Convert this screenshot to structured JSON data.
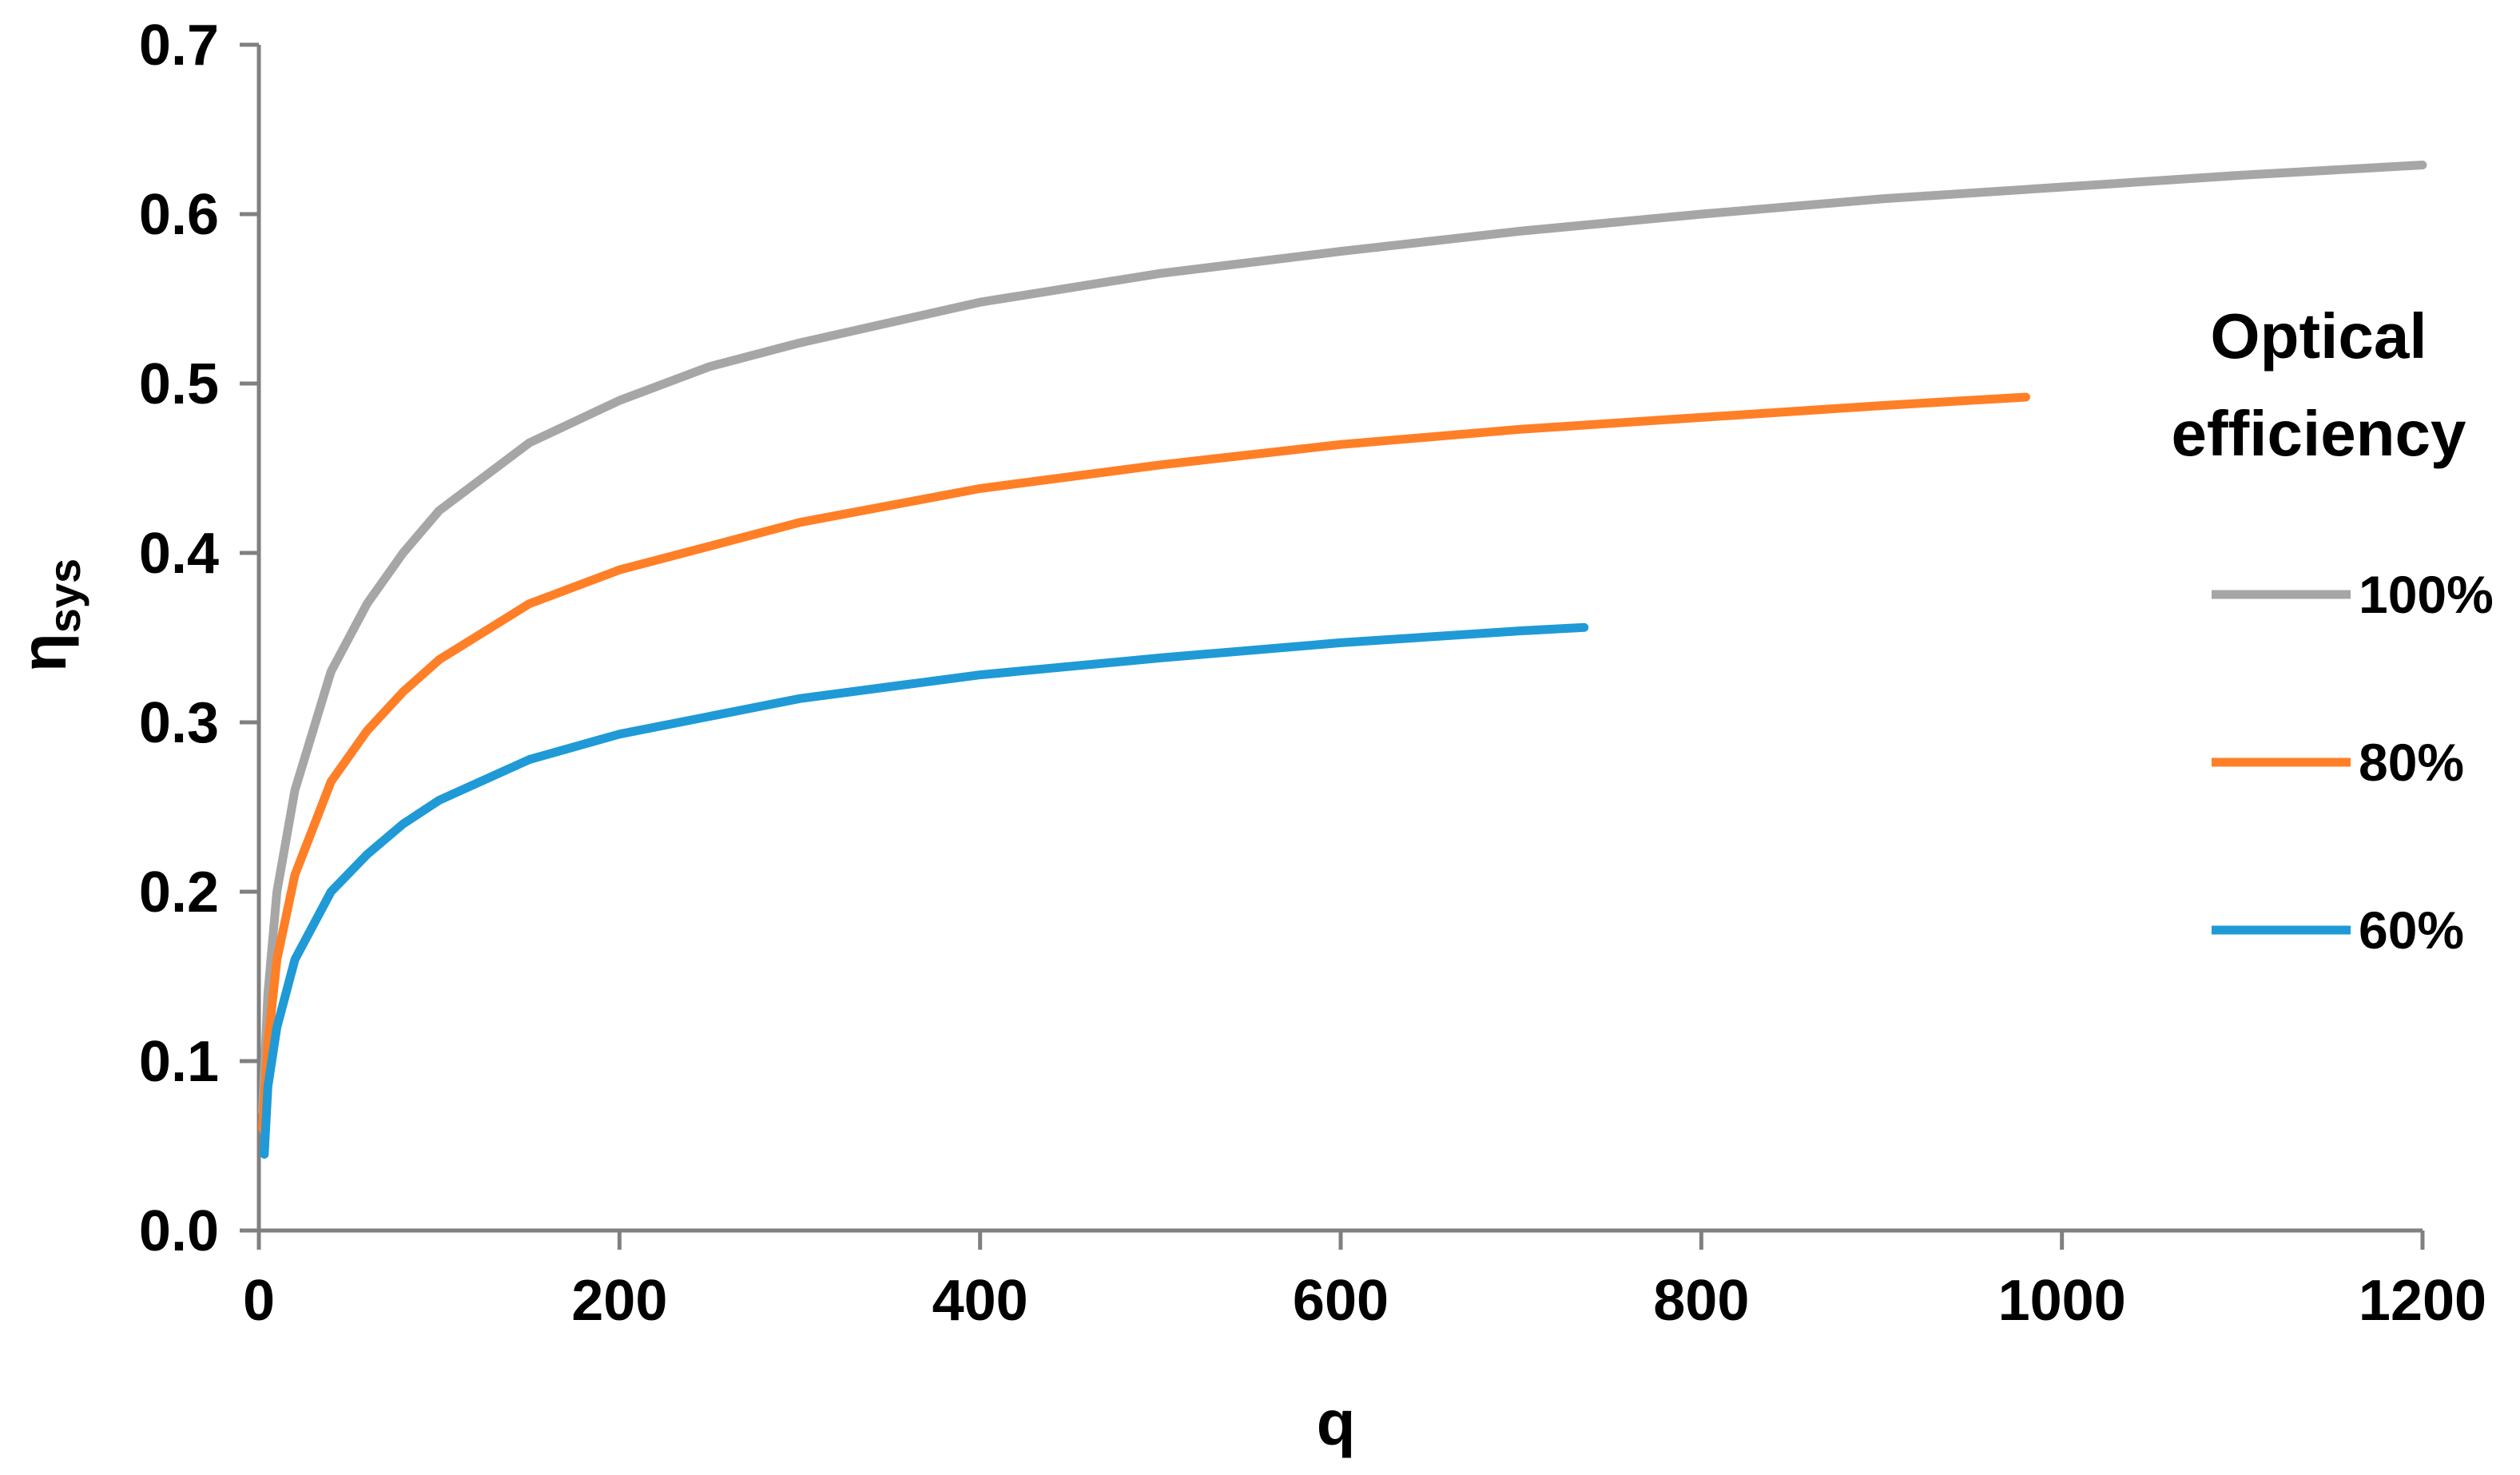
{
  "chart_data": {
    "type": "line",
    "xlabel": "q",
    "ylabel": "η",
    "ylabel_subscript": "sys",
    "xlim": [
      0,
      1200
    ],
    "ylim": [
      0,
      0.7
    ],
    "x_ticks": [
      0,
      200,
      400,
      600,
      800,
      1000,
      1200
    ],
    "x_tick_labels": [
      "0",
      "200",
      "400",
      "600",
      "800",
      "1000",
      "1200"
    ],
    "y_ticks": [
      0,
      0.1,
      0.2,
      0.3,
      0.4,
      0.5,
      0.6,
      0.7
    ],
    "y_tick_labels": [
      "0.0",
      "0.1",
      "0.2",
      "0.3",
      "0.4",
      "0.5",
      "0.6",
      "0.7"
    ],
    "grid": false,
    "legend": {
      "title_lines": [
        "Optical",
        "efficiency"
      ],
      "position": "right"
    },
    "series": [
      {
        "name": "100%",
        "color": "#a6a6a6",
        "points": [
          [
            2,
            0.07
          ],
          [
            5,
            0.14
          ],
          [
            10,
            0.2
          ],
          [
            20,
            0.26
          ],
          [
            40,
            0.33
          ],
          [
            60,
            0.37
          ],
          [
            80,
            0.4
          ],
          [
            100,
            0.425
          ],
          [
            150,
            0.465
          ],
          [
            200,
            0.49
          ],
          [
            250,
            0.51
          ],
          [
            300,
            0.524
          ],
          [
            400,
            0.548
          ],
          [
            500,
            0.565
          ],
          [
            600,
            0.578
          ],
          [
            700,
            0.59
          ],
          [
            800,
            0.6
          ],
          [
            900,
            0.609
          ],
          [
            1000,
            0.616
          ],
          [
            1100,
            0.623
          ],
          [
            1200,
            0.629
          ]
        ]
      },
      {
        "name": "80%",
        "color": "#ff7f27",
        "points": [
          [
            2,
            0.06
          ],
          [
            5,
            0.11
          ],
          [
            10,
            0.16
          ],
          [
            20,
            0.21
          ],
          [
            40,
            0.265
          ],
          [
            60,
            0.295
          ],
          [
            80,
            0.318
          ],
          [
            100,
            0.337
          ],
          [
            150,
            0.37
          ],
          [
            200,
            0.39
          ],
          [
            300,
            0.418
          ],
          [
            400,
            0.438
          ],
          [
            500,
            0.452
          ],
          [
            600,
            0.464
          ],
          [
            700,
            0.473
          ],
          [
            800,
            0.48
          ],
          [
            900,
            0.487
          ],
          [
            980,
            0.492
          ]
        ]
      },
      {
        "name": "60%",
        "color": "#1f9ad6",
        "points": [
          [
            3,
            0.045
          ],
          [
            5,
            0.085
          ],
          [
            10,
            0.12
          ],
          [
            20,
            0.16
          ],
          [
            40,
            0.2
          ],
          [
            60,
            0.222
          ],
          [
            80,
            0.24
          ],
          [
            100,
            0.254
          ],
          [
            150,
            0.278
          ],
          [
            200,
            0.293
          ],
          [
            300,
            0.314
          ],
          [
            400,
            0.328
          ],
          [
            500,
            0.338
          ],
          [
            600,
            0.347
          ],
          [
            700,
            0.354
          ],
          [
            735,
            0.356
          ]
        ]
      }
    ]
  }
}
